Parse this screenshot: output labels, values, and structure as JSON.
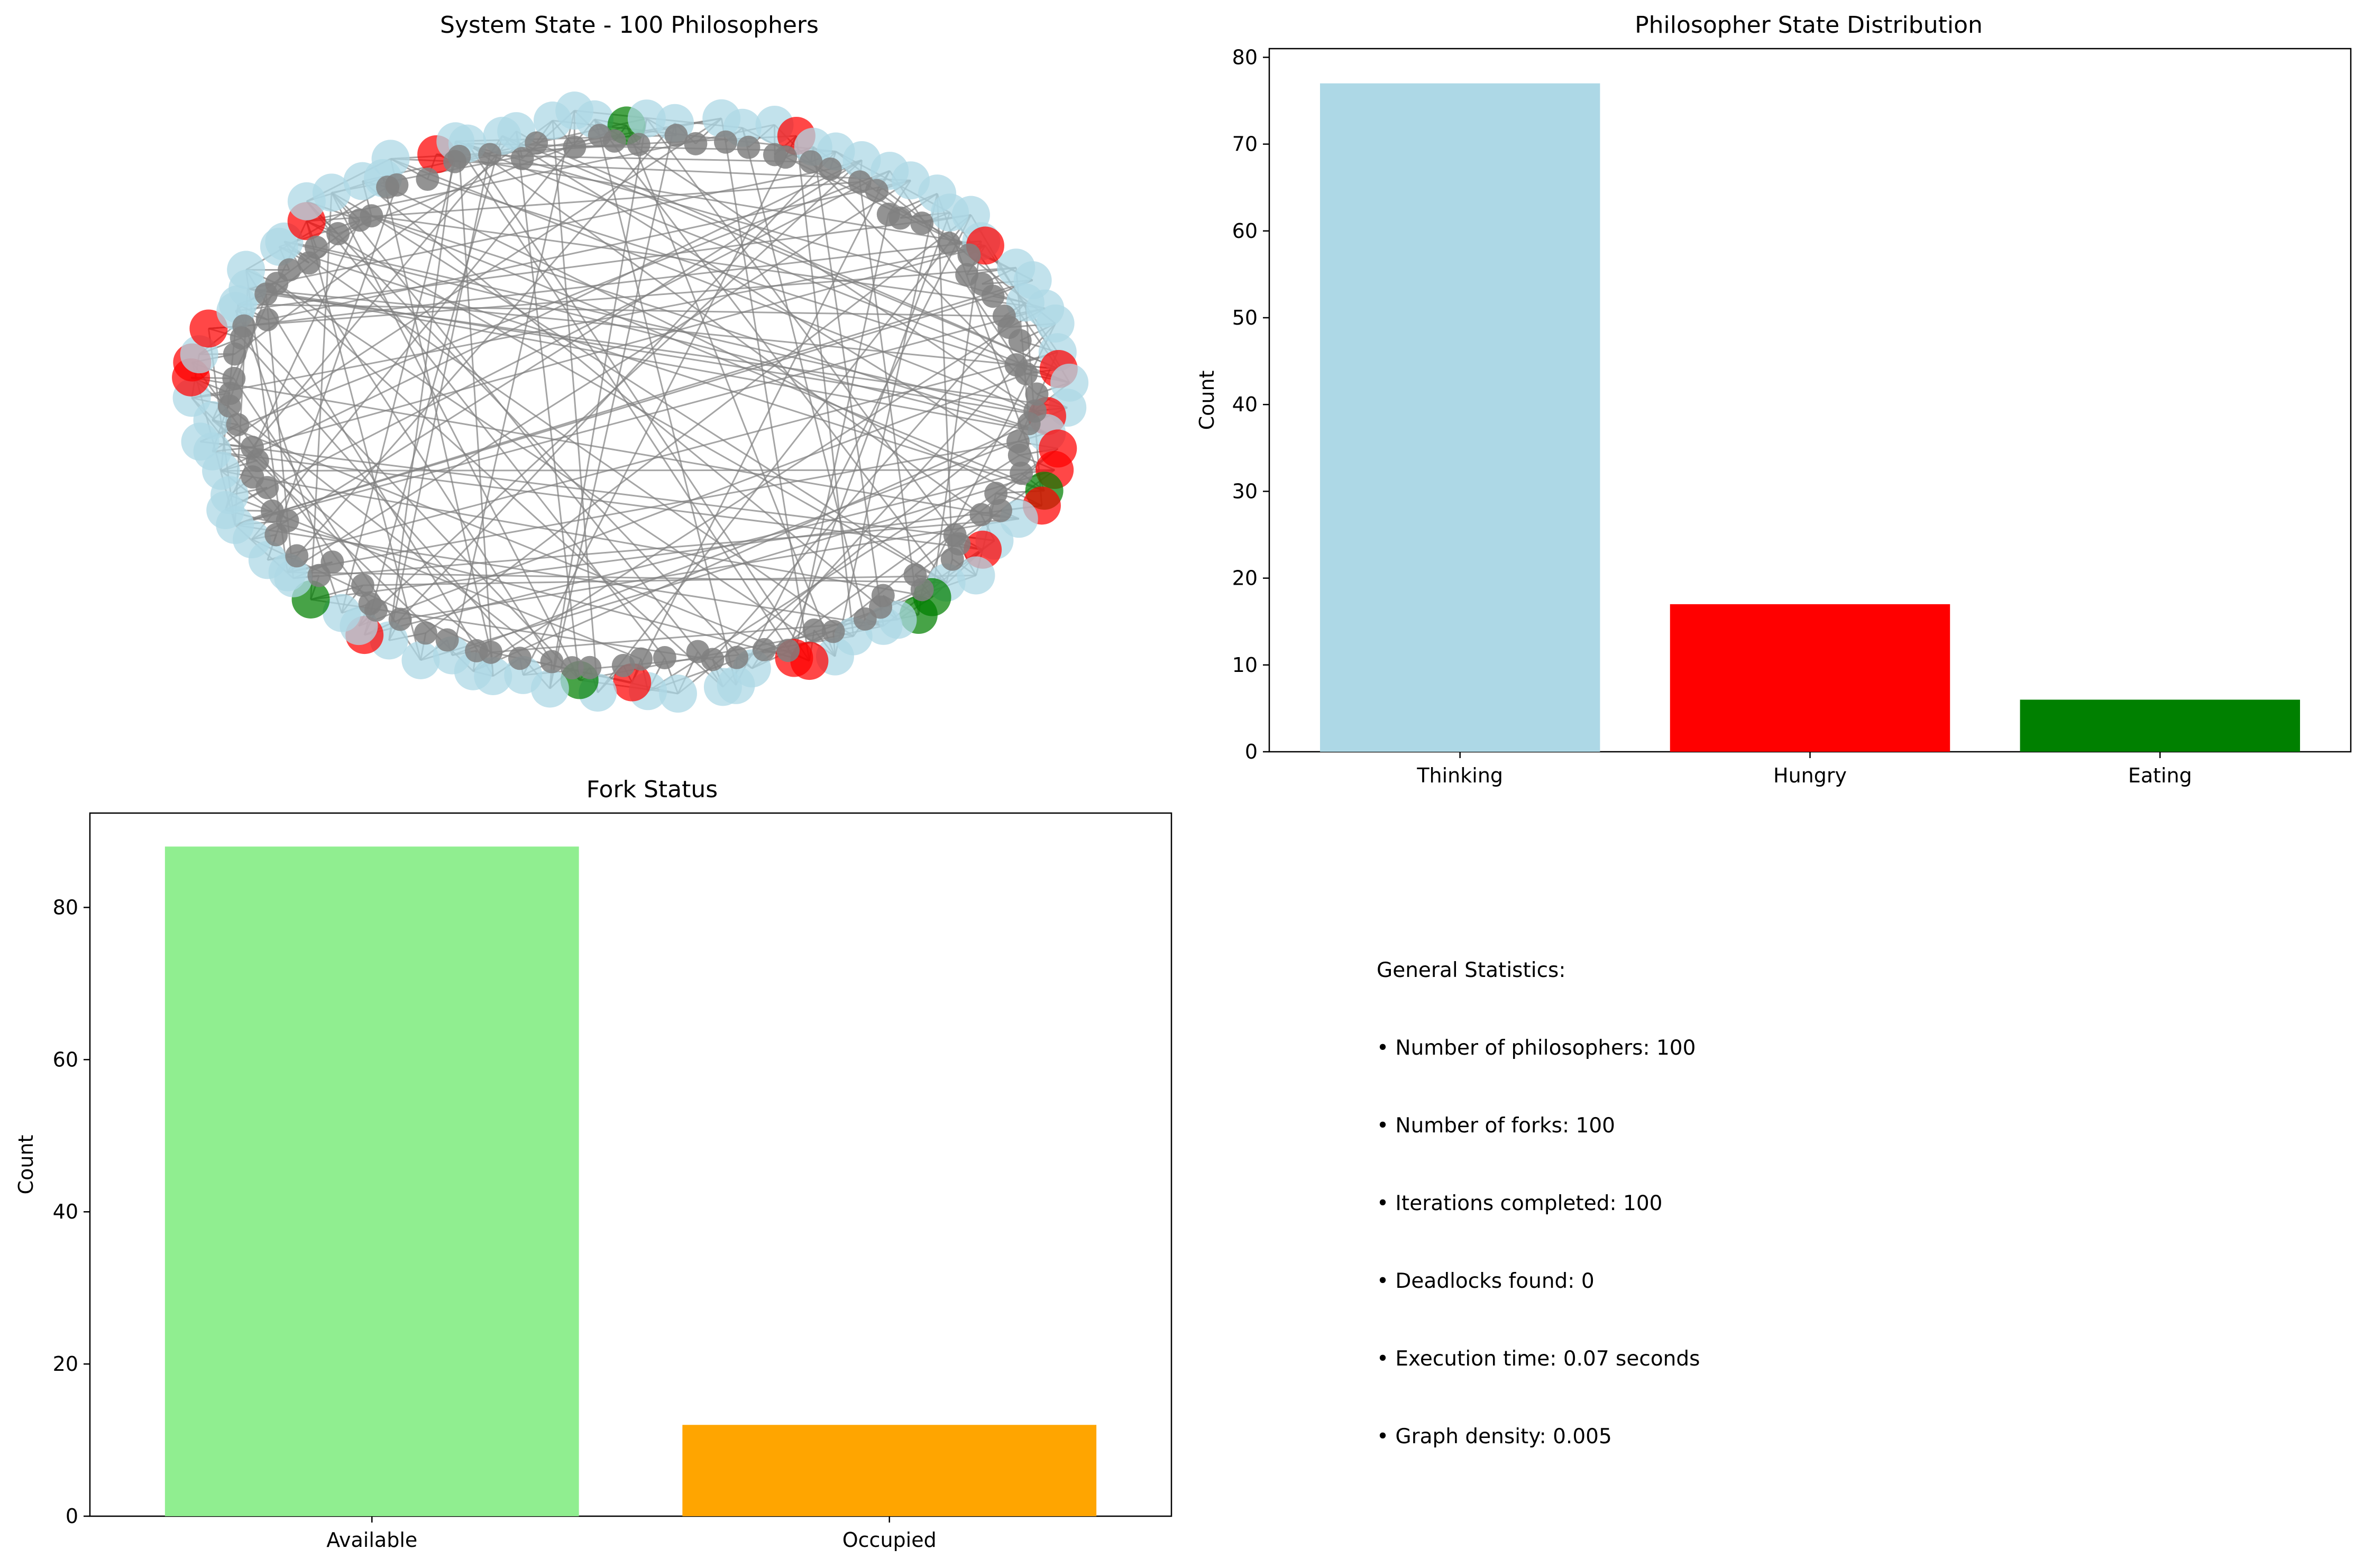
{
  "chart_data": [
    {
      "type": "network",
      "title": "System State - 100 Philosophers",
      "node_groups": [
        {
          "name": "Thinking",
          "count": 77,
          "color": "#add8e6"
        },
        {
          "name": "Hungry",
          "count": 17,
          "color": "#ff0000"
        },
        {
          "name": "Eating",
          "count": 6,
          "color": "#008000"
        },
        {
          "name": "Fork",
          "count": 100,
          "color": "#808080"
        }
      ],
      "edge_color": "#808080",
      "layout": "ring"
    },
    {
      "type": "bar",
      "title": "Philosopher State Distribution",
      "categories": [
        "Thinking",
        "Hungry",
        "Eating"
      ],
      "values": [
        77,
        17,
        6
      ],
      "colors": [
        "#add8e6",
        "#ff0000",
        "#008000"
      ],
      "xlabel": "",
      "ylabel": "Count",
      "ylim": [
        0,
        81
      ],
      "yticks": [
        0,
        10,
        20,
        30,
        40,
        50,
        60,
        70,
        80
      ],
      "grid": false
    },
    {
      "type": "bar",
      "title": "Fork Status",
      "categories": [
        "Available",
        "Occupied"
      ],
      "values": [
        88,
        12
      ],
      "colors": [
        "#90ee90",
        "#ffa500"
      ],
      "xlabel": "",
      "ylabel": "Count",
      "ylim": [
        0,
        92.4
      ],
      "yticks": [
        0,
        20,
        40,
        60,
        80
      ],
      "grid": false
    }
  ],
  "stats": {
    "heading": "General Statistics:",
    "lines": [
      "• Number of philosophers: 100",
      "• Number of forks: 100",
      "• Iterations completed: 100",
      "• Deadlocks found: 0",
      "• Execution time: 0.07 seconds",
      "• Graph density: 0.005"
    ]
  }
}
